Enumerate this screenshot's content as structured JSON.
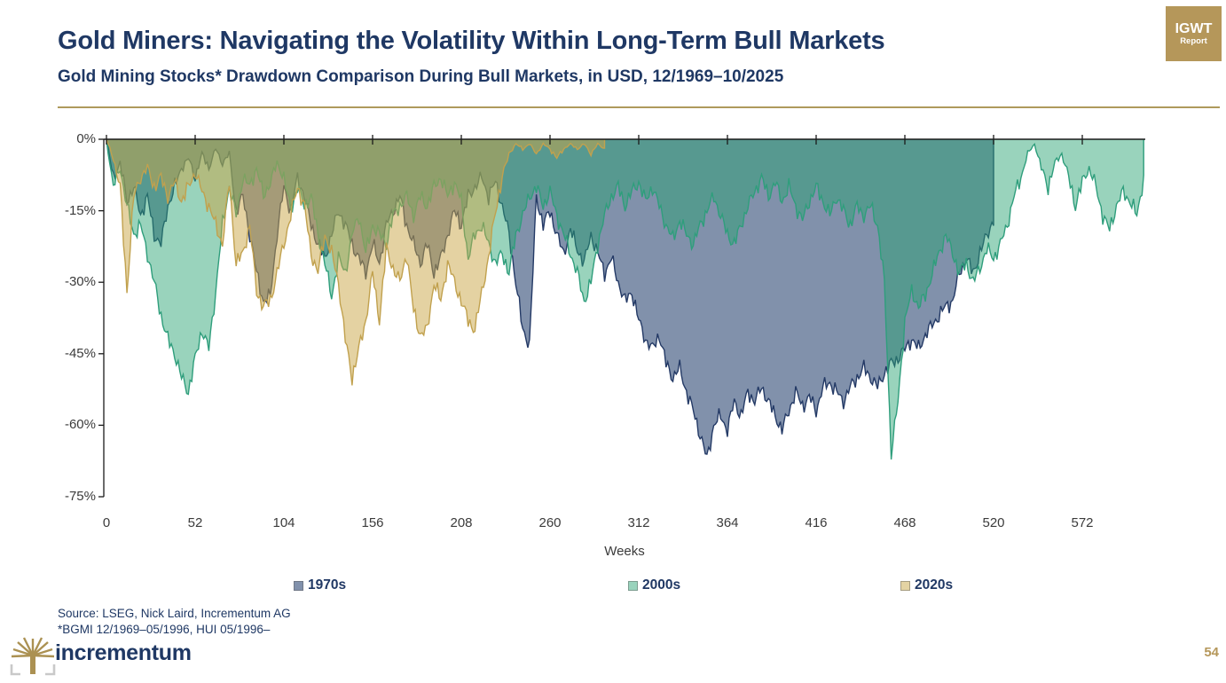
{
  "header": {
    "title": "Gold Miners: Navigating the Volatility Within Long-Term Bull Markets",
    "subtitle": "Gold Mining Stocks* Drawdown Comparison During Bull Markets, in USD, 12/1969–10/2025"
  },
  "badge": {
    "line1": "IGWT",
    "line2": "Report"
  },
  "colors": {
    "accent_gold": "#B5975A",
    "navy_text": "#1F3864",
    "axis_text": "#3B3B3B"
  },
  "chart_data": {
    "type": "area",
    "title": "Gold Mining Stocks Drawdown Comparison During Bull Markets",
    "xlabel": "Weeks",
    "ylabel": "",
    "xlim": [
      0,
      608
    ],
    "ylim": [
      -75,
      0
    ],
    "grid": false,
    "legend_position": "bottom",
    "x_ticks": [
      0,
      52,
      104,
      156,
      208,
      260,
      312,
      364,
      416,
      468,
      520,
      572
    ],
    "y_ticks": [
      {
        "value": 0,
        "label": "0%"
      },
      {
        "value": -15,
        "label": "-15%"
      },
      {
        "value": -30,
        "label": "-30%"
      },
      {
        "value": -45,
        "label": "-45%"
      },
      {
        "value": -60,
        "label": "-60%"
      },
      {
        "value": -75,
        "label": "-75%"
      }
    ],
    "series": [
      {
        "name": "1970s",
        "base_color": "#24406E",
        "fill_opacity": 0.575,
        "stroke": "#243A66",
        "x_start": 0,
        "x_step": 4,
        "values": [
          0,
          -8,
          -5,
          -13,
          -10,
          -16,
          -12,
          -20,
          -22,
          -14,
          -10,
          -6,
          -4,
          -8,
          -3,
          -6,
          -2,
          -5,
          -3,
          -15,
          -12,
          -20,
          -28,
          -34,
          -33,
          -20,
          -10,
          -15,
          -8,
          -12,
          -18,
          -22,
          -25,
          -20,
          -15,
          -18,
          -22,
          -25,
          -28,
          -22,
          -26,
          -18,
          -15,
          -12,
          -18,
          -22,
          -26,
          -22,
          -28,
          -25,
          -20,
          -15,
          -18,
          -12,
          -10,
          -8,
          -12,
          -9,
          -14,
          -20,
          -30,
          -40,
          -43,
          -12,
          -18,
          -15,
          -20,
          -24,
          -19,
          -23,
          -26,
          -20,
          -24,
          -28,
          -25,
          -30,
          -34,
          -32,
          -38,
          -42,
          -44,
          -41,
          -47,
          -50,
          -48,
          -53,
          -57,
          -62,
          -67,
          -60,
          -58,
          -61,
          -55,
          -58,
          -53,
          -55,
          -52,
          -55,
          -58,
          -61,
          -57,
          -53,
          -56,
          -54,
          -57,
          -52,
          -51,
          -53,
          -55,
          -52,
          -50,
          -48,
          -50,
          -52,
          -49,
          -47,
          -46,
          -44,
          -42,
          -44,
          -41,
          -39,
          -37,
          -35,
          -34,
          -28,
          -25,
          -28,
          -24,
          -20,
          -17
        ]
      },
      {
        "name": "2000s",
        "base_color": "#2AA474",
        "fill_opacity": 0.48,
        "stroke": "#2F9E7C",
        "x_start": 0,
        "x_step": 4,
        "values": [
          0,
          -10,
          -6,
          -14,
          -20,
          -18,
          -24,
          -30,
          -37,
          -42,
          -45,
          -50,
          -53,
          -46,
          -40,
          -44,
          -32,
          -18,
          -10,
          -16,
          -8,
          -10,
          -6,
          -12,
          -9,
          -5,
          -8,
          -15,
          -10,
          -14,
          -12,
          -20,
          -26,
          -33,
          -25,
          -28,
          -20,
          -16,
          -24,
          -18,
          -20,
          -22,
          -16,
          -14,
          -12,
          -16,
          -12,
          -14,
          -10,
          -8,
          -12,
          -9,
          -13,
          -25,
          -20,
          -18,
          -22,
          -26,
          -24,
          -28,
          -20,
          -16,
          -12,
          -10,
          -14,
          -11,
          -16,
          -20,
          -24,
          -28,
          -34,
          -30,
          -22,
          -16,
          -12,
          -10,
          -14,
          -11,
          -9,
          -13,
          -10,
          -14,
          -18,
          -21,
          -17,
          -20,
          -22,
          -18,
          -15,
          -12,
          -16,
          -20,
          -22,
          -18,
          -14,
          -11,
          -8,
          -12,
          -9,
          -13,
          -10,
          -14,
          -17,
          -13,
          -10,
          -13,
          -16,
          -12,
          -15,
          -18,
          -14,
          -16,
          -14,
          -18,
          -30,
          -66,
          -55,
          -38,
          -32,
          -35,
          -33,
          -28,
          -24,
          -20,
          -24,
          -28,
          -26,
          -30,
          -27,
          -23,
          -25,
          -22,
          -18,
          -12,
          -8,
          -3,
          -1,
          -6,
          -10,
          -5,
          -3,
          -8,
          -14,
          -9,
          -6,
          -10,
          -16,
          -19,
          -14,
          -11,
          -13,
          -16,
          -8
        ]
      },
      {
        "name": "2020s",
        "base_color": "#C9A646",
        "fill_opacity": 0.5,
        "stroke": "#C1A14E",
        "x_start": 0,
        "x_step": 4,
        "values": [
          0,
          -4,
          -10,
          -32,
          -12,
          -8,
          -6,
          -10,
          -8,
          -12,
          -9,
          -13,
          -10,
          -7,
          -11,
          -14,
          -18,
          -22,
          -9,
          -26,
          -24,
          -18,
          -32,
          -35,
          -34,
          -28,
          -22,
          -16,
          -10,
          -14,
          -24,
          -28,
          -20,
          -24,
          -30,
          -42,
          -50,
          -44,
          -38,
          -28,
          -38,
          -23,
          -27,
          -30,
          -24,
          -36,
          -41,
          -40,
          -30,
          -34,
          -26,
          -30,
          -34,
          -38,
          -40,
          -32,
          -25,
          -15,
          -8,
          -3,
          -1,
          -2,
          -1,
          -3,
          -1,
          -2,
          -4,
          -2,
          -1,
          -2,
          -1,
          -3,
          -1,
          -2
        ]
      }
    ]
  },
  "footer": {
    "source_line1": "Source: LSEG, Nick Laird, Incrementum AG",
    "source_line2": "*BGMI 12/1969–05/1996, HUI 05/1996–",
    "brand": "incrementum",
    "page_number": "54"
  }
}
